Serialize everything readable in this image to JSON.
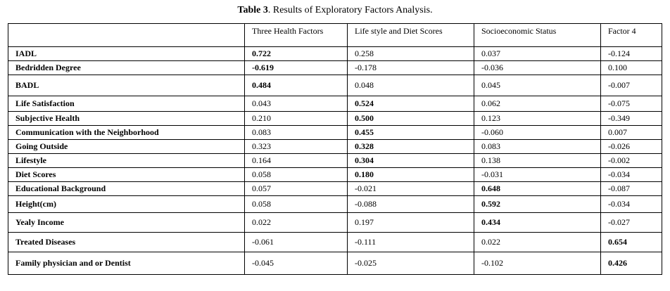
{
  "caption": {
    "label": "Table 3",
    "text": ". Results of Exploratory Factors Analysis."
  },
  "table": {
    "headers": [
      "",
      "Three Health Factors",
      "Life style and Diet Scores",
      "Socioeconomic Status",
      "Factor 4"
    ],
    "rows": [
      {
        "label": "IADL",
        "values": [
          "0.722",
          "0.258",
          "0.037",
          "-0.124"
        ],
        "bold": [
          true,
          false,
          false,
          false
        ]
      },
      {
        "label": "Bedridden Degree",
        "values": [
          "-0.619",
          "-0.178",
          "-0.036",
          "0.100"
        ],
        "bold": [
          true,
          false,
          false,
          false
        ]
      },
      {
        "label": "BADL",
        "values": [
          "0.484",
          "0.048",
          "0.045",
          "-0.007"
        ],
        "bold": [
          true,
          false,
          false,
          false
        ]
      },
      {
        "label": "Life Satisfaction",
        "values": [
          "0.043",
          "0.524",
          "0.062",
          "-0.075"
        ],
        "bold": [
          false,
          true,
          false,
          false
        ]
      },
      {
        "label": "Subjective Health",
        "values": [
          "0.210",
          "0.500",
          "0.123",
          "-0.349"
        ],
        "bold": [
          false,
          true,
          false,
          false
        ]
      },
      {
        "label": "Communication with the Neighborhood",
        "values": [
          "0.083",
          "0.455",
          "-0.060",
          "0.007"
        ],
        "bold": [
          false,
          true,
          false,
          false
        ]
      },
      {
        "label": "Going Outside",
        "values": [
          "0.323",
          "0.328",
          "0.083",
          "-0.026"
        ],
        "bold": [
          false,
          true,
          false,
          false
        ]
      },
      {
        "label": "Lifestyle",
        "values": [
          "0.164",
          "0.304",
          "0.138",
          "-0.002"
        ],
        "bold": [
          false,
          true,
          false,
          false
        ]
      },
      {
        "label": "Diet Scores",
        "values": [
          "0.058",
          "0.180",
          "-0.031",
          "-0.034"
        ],
        "bold": [
          false,
          true,
          false,
          false
        ]
      },
      {
        "label": "Educational Background",
        "values": [
          "0.057",
          "-0.021",
          "0.648",
          "-0.087"
        ],
        "bold": [
          false,
          false,
          true,
          false
        ]
      },
      {
        "label": "Height(cm)",
        "values": [
          "0.058",
          "-0.088",
          "0.592",
          "-0.034"
        ],
        "bold": [
          false,
          false,
          true,
          false
        ]
      },
      {
        "label": "Yealy Income",
        "values": [
          "0.022",
          "0.197",
          "0.434",
          "-0.027"
        ],
        "bold": [
          false,
          false,
          true,
          false
        ]
      },
      {
        "label": "Treated Diseases",
        "values": [
          "-0.061",
          "-0.111",
          "0.022",
          "0.654"
        ],
        "bold": [
          false,
          false,
          false,
          true
        ]
      },
      {
        "label": "Family physician and or Dentist",
        "values": [
          "-0.045",
          "-0.025",
          "-0.102",
          "0.426"
        ],
        "bold": [
          false,
          false,
          false,
          true
        ]
      }
    ]
  }
}
